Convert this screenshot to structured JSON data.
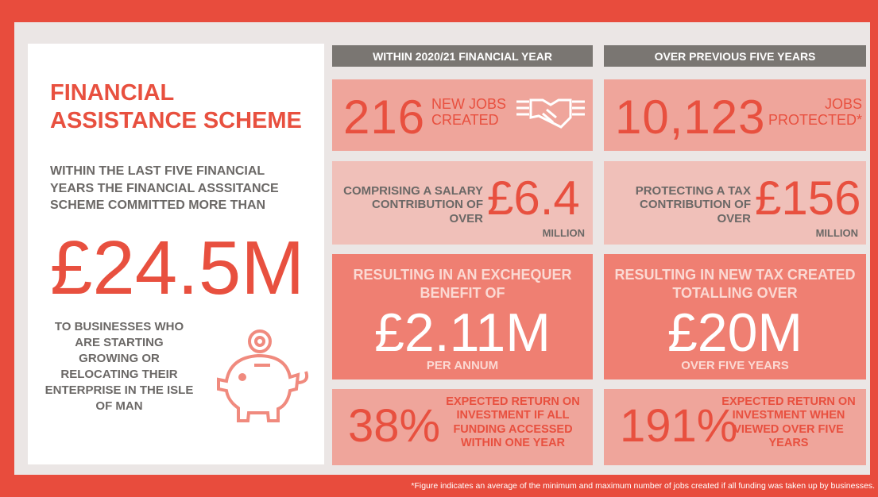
{
  "left": {
    "title": "FINANCIAL ASSISTANCE SCHEME",
    "intro": "WITHIN THE LAST FIVE FINANCIAL YEARS THE FINANCIAL ASSSITANCE SCHEME COMMITTED MORE THAN",
    "amount": "£24.5M",
    "description": "TO BUSINESSES WHO ARE STARTING GROWING OR RELOCATING THEIR ENTERPRISE IN THE ISLE OF MAN"
  },
  "columns": [
    {
      "header": "WITHIN 2020/21 FINANCIAL YEAR",
      "jobs": {
        "number": "216",
        "label": "NEW JOBS CREATED"
      },
      "contribution": {
        "text": "COMPRISING A SALARY CONTRIBUTION OF OVER",
        "amount": "£6.4",
        "unit": "MILLION"
      },
      "benefit": {
        "text": "RESULTING IN AN EXCHEQUER BENEFIT OF",
        "amount": "£2.11M",
        "period": "PER ANNUM"
      },
      "return": {
        "percent": "38%",
        "text": "EXPECTED RETURN ON INVESTMENT IF ALL FUNDING ACCESSED WITHIN ONE YEAR"
      }
    },
    {
      "header": "OVER PREVIOUS FIVE YEARS",
      "jobs": {
        "number": "10,123",
        "label": "JOBS PROTECTED*"
      },
      "contribution": {
        "text": "PROTECTING A TAX CONTRIBUTION OF OVER",
        "amount": "£156",
        "unit": "MILLION"
      },
      "benefit": {
        "text": "RESULTING IN NEW TAX CREATED TOTALLING OVER",
        "amount": "£20M",
        "period": "OVER FIVE YEARS"
      },
      "return": {
        "percent": "191%",
        "text": "EXPECTED RETURN ON INVESTMENT WHEN VIEWED OVER FIVE YEARS"
      }
    }
  ],
  "footnote": "*Figure indicates an average of the minimum and maximum number of jobs created if all funding was taken up by businesses."
}
